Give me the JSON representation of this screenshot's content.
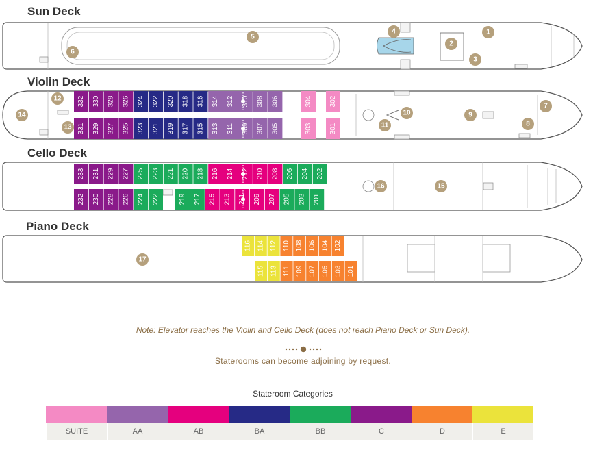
{
  "colors": {
    "SUITE": "#f48ac4",
    "AA": "#9565ac",
    "AB": "#e5007e",
    "BA": "#262a86",
    "BB": "#1bab5b",
    "C": "#8a1a8a",
    "D": "#f7822f",
    "E": "#ebe33b",
    "marker": "#b5a07c",
    "hull": "#555555"
  },
  "decks": [
    {
      "title": "Sun Deck",
      "markers": [
        "1",
        "2",
        "3",
        "4",
        "5",
        "6"
      ],
      "rooms_top": [],
      "rooms_bottom": []
    },
    {
      "title": "Violin Deck",
      "markers": [
        "7",
        "8",
        "9",
        "10",
        "11",
        "12",
        "13",
        "14"
      ],
      "rooms_top": [
        {
          "n": "332",
          "cat": "C"
        },
        {
          "n": "330",
          "cat": "C"
        },
        {
          "n": "328",
          "cat": "C"
        },
        {
          "n": "326",
          "cat": "C"
        },
        {
          "n": "324",
          "cat": "BA"
        },
        {
          "n": "322",
          "cat": "BA"
        },
        {
          "n": "320",
          "cat": "BA"
        },
        {
          "n": "318",
          "cat": "BA"
        },
        {
          "n": "316",
          "cat": "BA"
        },
        {
          "n": "314",
          "cat": "AA"
        },
        {
          "n": "312",
          "cat": "AA"
        },
        {
          "n": "310",
          "cat": "AA"
        },
        {
          "n": "308",
          "cat": "AA"
        },
        {
          "n": "306",
          "cat": "AA"
        },
        {
          "n": "304",
          "cat": "SUITE"
        },
        {
          "n": "302",
          "cat": "SUITE"
        }
      ],
      "rooms_bottom": [
        {
          "n": "331",
          "cat": "C"
        },
        {
          "n": "329",
          "cat": "C"
        },
        {
          "n": "327",
          "cat": "C"
        },
        {
          "n": "325",
          "cat": "C"
        },
        {
          "n": "323",
          "cat": "BA"
        },
        {
          "n": "321",
          "cat": "BA"
        },
        {
          "n": "319",
          "cat": "BA"
        },
        {
          "n": "317",
          "cat": "BA"
        },
        {
          "n": "315",
          "cat": "BA"
        },
        {
          "n": "313",
          "cat": "AA"
        },
        {
          "n": "311",
          "cat": "AA"
        },
        {
          "n": "309",
          "cat": "AA"
        },
        {
          "n": "307",
          "cat": "AA"
        },
        {
          "n": "305",
          "cat": "AA"
        },
        {
          "n": "303",
          "cat": "SUITE"
        },
        {
          "n": "301",
          "cat": "SUITE"
        }
      ]
    },
    {
      "title": "Cello Deck",
      "markers": [
        "15",
        "16"
      ],
      "rooms_top": [
        {
          "n": "233",
          "cat": "C"
        },
        {
          "n": "231",
          "cat": "C"
        },
        {
          "n": "229",
          "cat": "C"
        },
        {
          "n": "227",
          "cat": "C"
        },
        {
          "n": "225",
          "cat": "BB"
        },
        {
          "n": "223",
          "cat": "BB"
        },
        {
          "n": "221",
          "cat": "BB"
        },
        {
          "n": "220",
          "cat": "BB"
        },
        {
          "n": "218",
          "cat": "BB"
        },
        {
          "n": "216",
          "cat": "AB"
        },
        {
          "n": "214",
          "cat": "AB"
        },
        {
          "n": "212",
          "cat": "AB"
        },
        {
          "n": "210",
          "cat": "AB"
        },
        {
          "n": "208",
          "cat": "AB"
        },
        {
          "n": "206",
          "cat": "BB"
        },
        {
          "n": "204",
          "cat": "BB"
        },
        {
          "n": "202",
          "cat": "BB"
        }
      ],
      "rooms_bottom": [
        {
          "n": "232",
          "cat": "C"
        },
        {
          "n": "230",
          "cat": "C"
        },
        {
          "n": "228",
          "cat": "C"
        },
        {
          "n": "226",
          "cat": "C"
        },
        {
          "n": "224",
          "cat": "BB"
        },
        {
          "n": "222",
          "cat": "BB"
        },
        {
          "n": "219",
          "cat": "BB"
        },
        {
          "n": "217",
          "cat": "BB"
        },
        {
          "n": "215",
          "cat": "AB"
        },
        {
          "n": "213",
          "cat": "AB"
        },
        {
          "n": "211",
          "cat": "AB"
        },
        {
          "n": "209",
          "cat": "AB"
        },
        {
          "n": "207",
          "cat": "AB"
        },
        {
          "n": "205",
          "cat": "BB"
        },
        {
          "n": "203",
          "cat": "BB"
        },
        {
          "n": "201",
          "cat": "BB"
        }
      ]
    },
    {
      "title": "Piano Deck",
      "markers": [
        "17"
      ],
      "rooms_top": [
        {
          "n": "116",
          "cat": "E"
        },
        {
          "n": "114",
          "cat": "E"
        },
        {
          "n": "112",
          "cat": "E"
        },
        {
          "n": "110",
          "cat": "D"
        },
        {
          "n": "108",
          "cat": "D"
        },
        {
          "n": "106",
          "cat": "D"
        },
        {
          "n": "104",
          "cat": "D"
        },
        {
          "n": "102",
          "cat": "D"
        }
      ],
      "rooms_bottom": [
        {
          "n": "115",
          "cat": "E"
        },
        {
          "n": "113",
          "cat": "E"
        },
        {
          "n": "111",
          "cat": "D"
        },
        {
          "n": "109",
          "cat": "D"
        },
        {
          "n": "107",
          "cat": "D"
        },
        {
          "n": "105",
          "cat": "D"
        },
        {
          "n": "103",
          "cat": "D"
        },
        {
          "n": "101",
          "cat": "D"
        }
      ]
    }
  ],
  "note": "Note: Elevator reaches the Violin and Cello Deck (does not reach Piano Deck or Sun Deck).",
  "adjoining_text": "Staterooms can become adjoining by request.",
  "legend": {
    "title": "Stateroom Categories",
    "items": [
      {
        "label": "SUITE",
        "cat": "SUITE"
      },
      {
        "label": "AA",
        "cat": "AA"
      },
      {
        "label": "AB",
        "cat": "AB"
      },
      {
        "label": "BA",
        "cat": "BA"
      },
      {
        "label": "BB",
        "cat": "BB"
      },
      {
        "label": "C",
        "cat": "C"
      },
      {
        "label": "D",
        "cat": "D"
      },
      {
        "label": "E",
        "cat": "E"
      }
    ]
  }
}
